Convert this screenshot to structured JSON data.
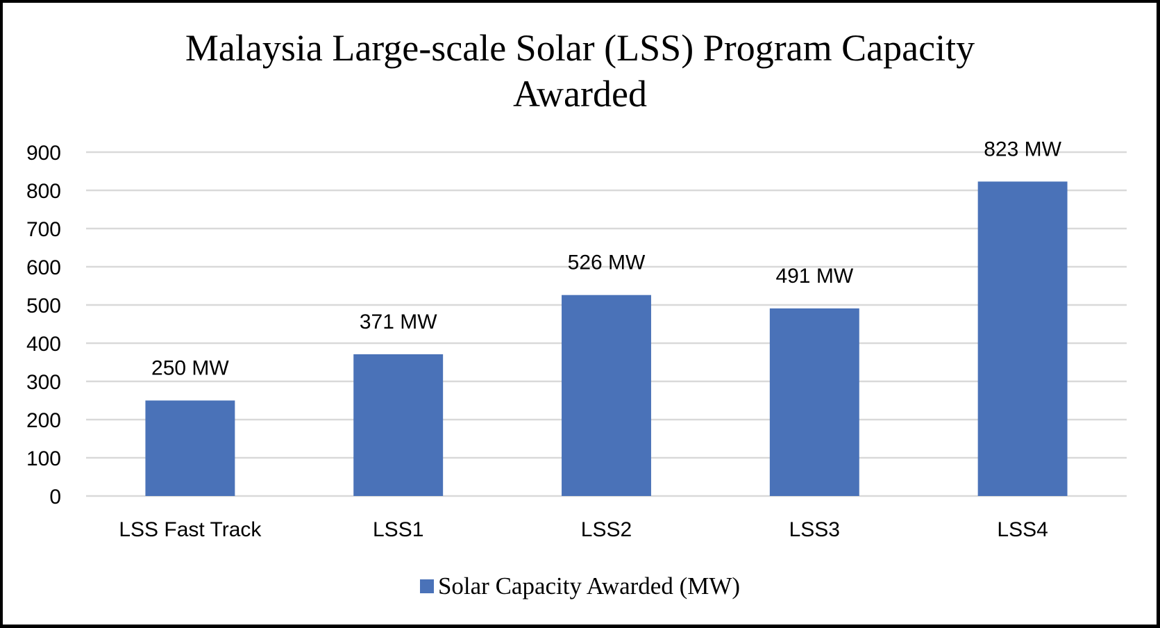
{
  "chart_data": {
    "type": "bar",
    "title": "Malaysia Large-scale Solar (LSS) Program Capacity Awarded",
    "title_lines": [
      "Malaysia Large-scale Solar (LSS) Program Capacity",
      "Awarded"
    ],
    "categories": [
      "LSS Fast Track",
      "LSS1",
      "LSS2",
      "LSS3",
      "LSS4"
    ],
    "series": [
      {
        "name": "Solar Capacity Awarded (MW)",
        "values": [
          250,
          371,
          526,
          491,
          823
        ],
        "data_labels": [
          "250 MW",
          "371 MW",
          "526 MW",
          "491 MW",
          "823 MW"
        ],
        "color": "#4A72B8"
      }
    ],
    "xlabel": "",
    "ylabel": "",
    "ylim": [
      0,
      900
    ],
    "yticks": [
      0,
      100,
      200,
      300,
      400,
      500,
      600,
      700,
      800,
      900
    ],
    "grid": true,
    "gridline_color": "#D9D9D9",
    "legend_position": "bottom"
  }
}
